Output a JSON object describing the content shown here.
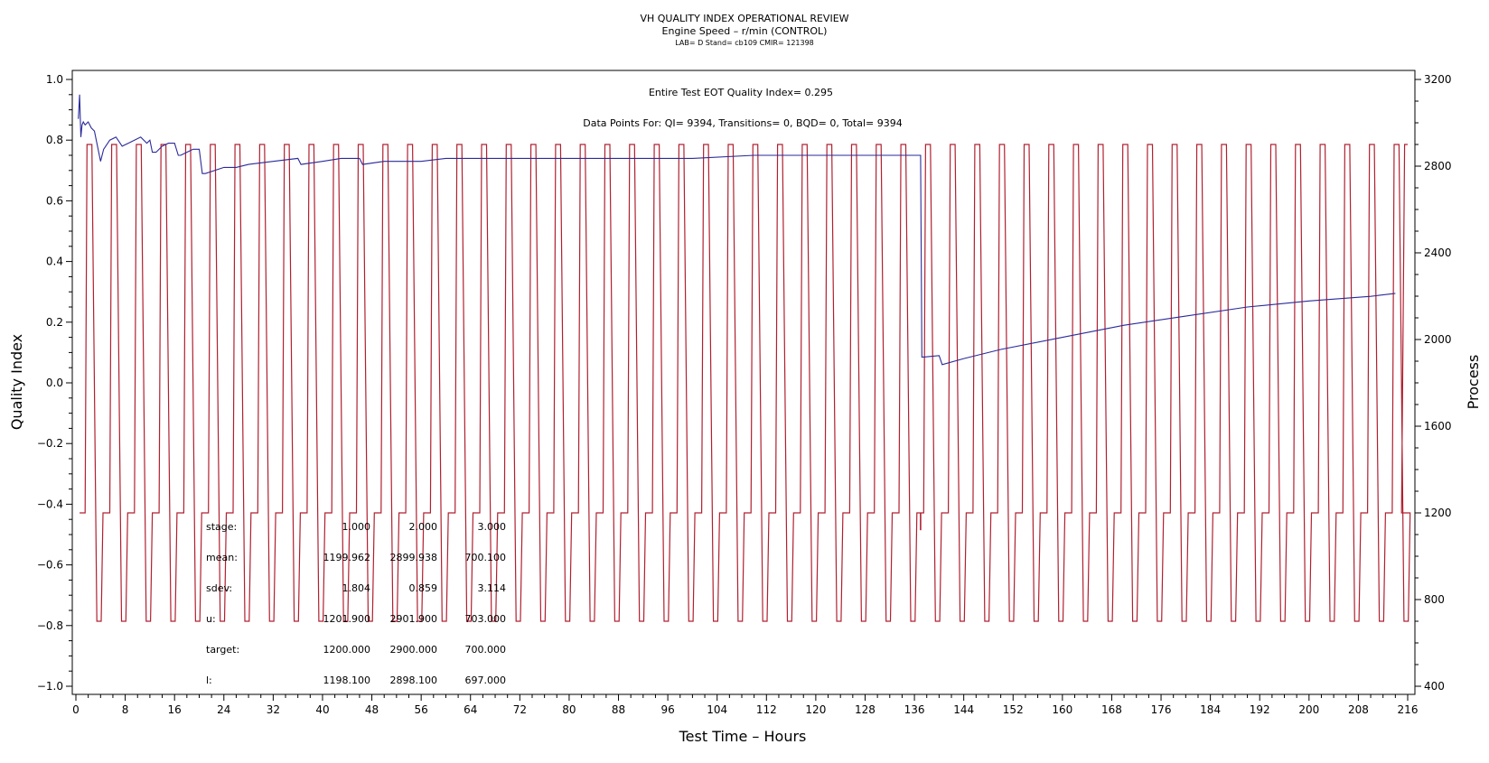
{
  "chart_data": {
    "type": "line",
    "title": "VH QUALITY INDEX OPERATIONAL REVIEW",
    "subtitle": "Engine Speed – r/min (CONTROL)",
    "meta": "LAB= D Stand= cb109 CMIR= 121398",
    "xlabel": "Test Time – Hours",
    "ylabel_left": "Quality Index",
    "ylabel_right": "Process",
    "xlim": [
      0,
      216
    ],
    "ylim_left": [
      -1.0,
      1.0
    ],
    "ylim_right": [
      400,
      3200
    ],
    "x_ticks": [
      0,
      8,
      16,
      24,
      32,
      40,
      48,
      56,
      64,
      72,
      80,
      88,
      96,
      104,
      112,
      120,
      128,
      136,
      144,
      152,
      160,
      168,
      176,
      184,
      192,
      200,
      208,
      216
    ],
    "y_ticks_left": [
      "1.0",
      "0.8",
      "0.6",
      "0.4",
      "0.2",
      "0.0",
      "−0.2",
      "−0.4",
      "−0.6",
      "−0.8",
      "−1.0"
    ],
    "y_ticks_right": [
      3200,
      2800,
      2400,
      2000,
      1600,
      1200,
      800,
      400
    ],
    "annotations": {
      "eot": "Entire Test EOT Quality Index=  0.295",
      "points": "Data Points For: QI=  9394, Transitions=     0, BQD=     0, Total=  9394"
    },
    "stats_table": {
      "rows": [
        {
          "label": "stage:",
          "values": [
            "1.000",
            "2.000",
            "3.000"
          ]
        },
        {
          "label": "mean:",
          "values": [
            "1199.962",
            "2899.938",
            "700.100"
          ]
        },
        {
          "label": "sdev:",
          "values": [
            "1.804",
            "0.859",
            "3.114"
          ]
        },
        {
          "label": "u:",
          "values": [
            "1201.900",
            "2901.900",
            "703.000"
          ]
        },
        {
          "label": "target:",
          "values": [
            "1200.000",
            "2900.000",
            "700.000"
          ]
        },
        {
          "label": "l:",
          "values": [
            "1198.100",
            "2898.100",
            "697.000"
          ]
        }
      ]
    },
    "series": [
      {
        "axis": "left",
        "color": "#2a2a9a",
        "x": [
          0.4,
          0.6,
          0.8,
          1.0,
          1.2,
          1.5,
          2.0,
          2.5,
          3.0,
          3.5,
          4.0,
          4.5,
          5.5,
          6.5,
          7.5,
          8.5,
          9.5,
          10.5,
          11.5,
          12.0,
          12.4,
          13.0,
          14.0,
          15.0,
          16.0,
          16.6,
          17.0,
          18.0,
          19.0,
          20.0,
          20.5,
          21.0,
          24.0,
          26.0,
          28.0,
          32.0,
          36.0,
          36.5,
          40.0,
          43.0,
          46.0,
          46.5,
          50.0,
          56.0,
          60.0,
          64.0,
          70.0,
          80.0,
          90.0,
          100.0,
          110.0,
          120.0,
          128.0,
          134.0,
          137.0,
          137.2,
          137.5,
          140.0,
          140.5,
          144.0,
          150.0,
          160.0,
          170.0,
          180.0,
          190.0,
          200.0,
          210.0,
          214.0
        ],
        "y": [
          0.87,
          0.95,
          0.81,
          0.85,
          0.86,
          0.85,
          0.86,
          0.84,
          0.83,
          0.78,
          0.73,
          0.77,
          0.8,
          0.81,
          0.78,
          0.79,
          0.8,
          0.81,
          0.79,
          0.8,
          0.76,
          0.76,
          0.78,
          0.79,
          0.79,
          0.75,
          0.75,
          0.76,
          0.77,
          0.77,
          0.69,
          0.69,
          0.71,
          0.71,
          0.72,
          0.73,
          0.74,
          0.72,
          0.73,
          0.74,
          0.74,
          0.72,
          0.73,
          0.73,
          0.74,
          0.74,
          0.74,
          0.74,
          0.74,
          0.74,
          0.75,
          0.75,
          0.75,
          0.75,
          0.75,
          0.085,
          0.085,
          0.09,
          0.06,
          0.08,
          0.11,
          0.15,
          0.19,
          0.22,
          0.25,
          0.27,
          0.285,
          0.295
        ]
      },
      {
        "axis": "right",
        "color": "#b02030",
        "cycle_hours": 4.0,
        "first_cycle_start": 0.6,
        "cycles": 54,
        "levels": [
          1200,
          2900,
          700
        ],
        "anomaly": {
          "x": 137.0,
          "y": 1120
        }
      }
    ]
  }
}
